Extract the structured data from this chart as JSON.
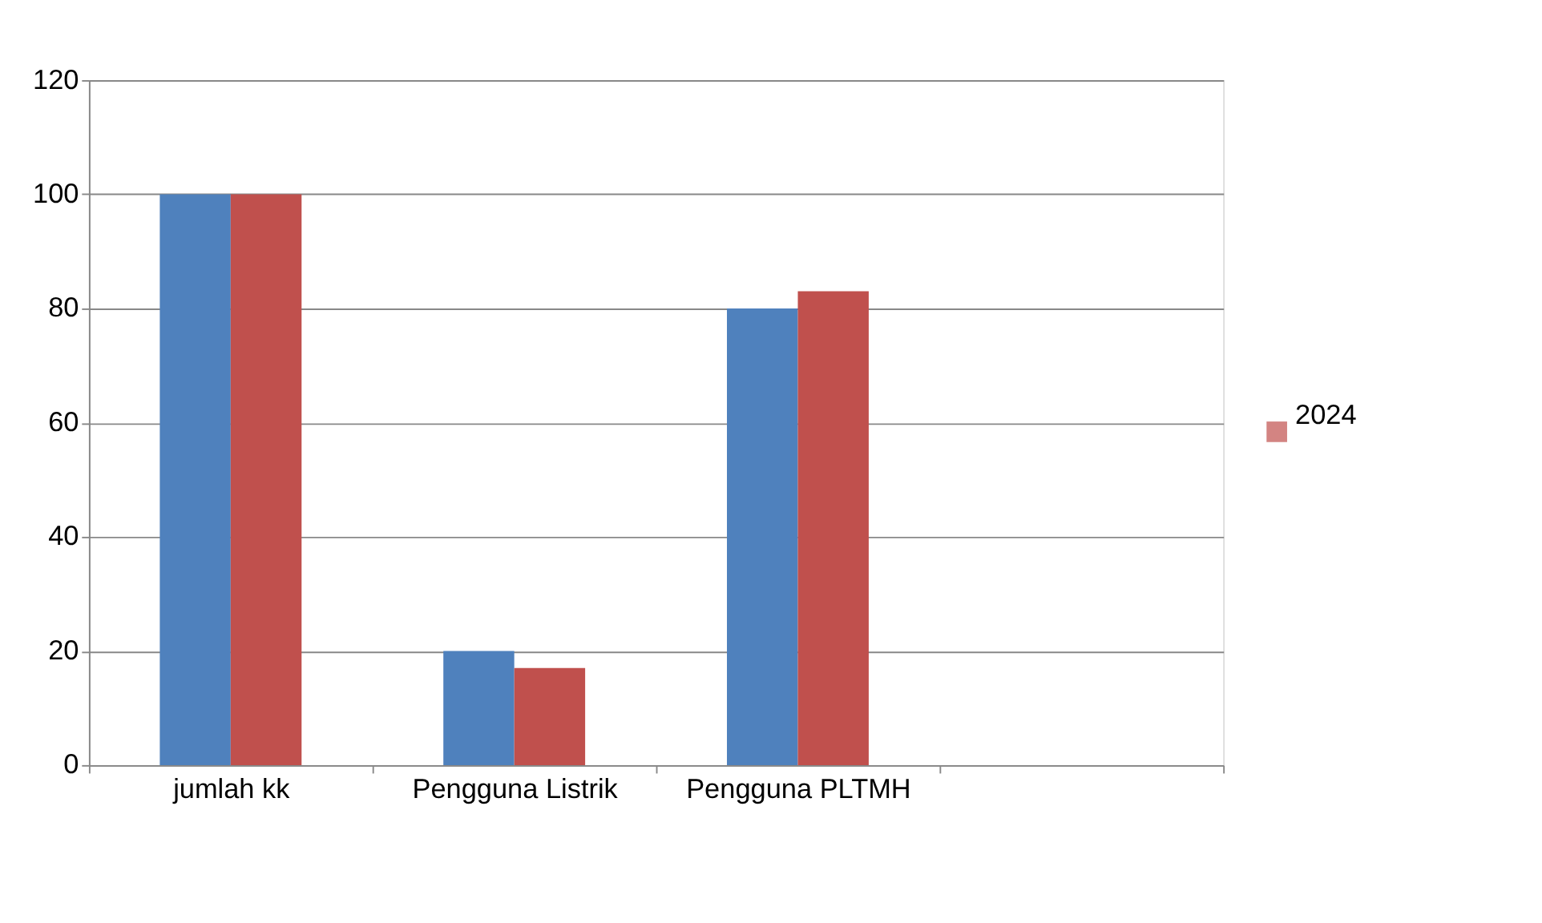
{
  "chart_data": {
    "type": "bar",
    "categories": [
      "jumlah kk",
      "Pengguna Listrik",
      "Pengguna PLTMH",
      null
    ],
    "series": [
      {
        "color": "#4f81bd",
        "values": [
          100,
          20,
          80,
          null
        ]
      },
      {
        "name": "2024",
        "color": "#c0504d",
        "values": [
          100,
          17,
          83,
          null
        ]
      }
    ],
    "ylim": [
      0,
      120
    ],
    "yticks": [
      0,
      20,
      40,
      60,
      80,
      100,
      120
    ],
    "grid": "y",
    "legend": "right"
  }
}
